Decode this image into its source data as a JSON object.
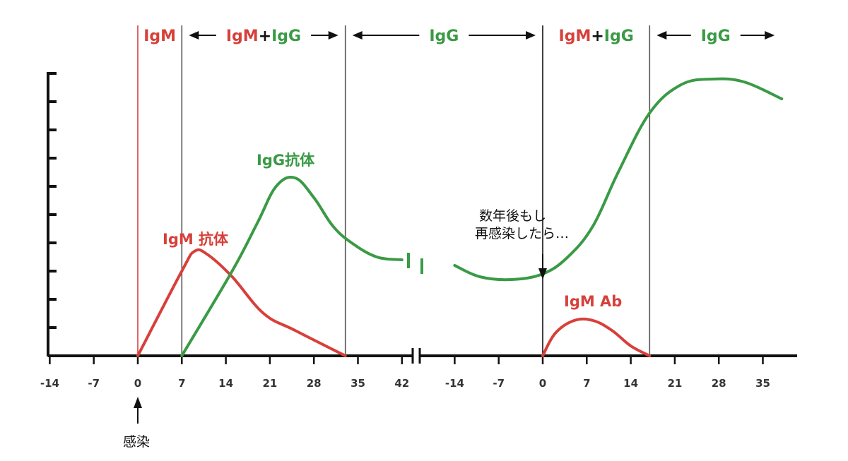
{
  "chart_data": {
    "type": "line",
    "title": "",
    "xlabel": "",
    "ylabel": "",
    "colors": {
      "igm": "#d7403a",
      "igg": "#3a9a45",
      "axis": "#111111",
      "divider": "#555555"
    },
    "panels": [
      {
        "name": "primary",
        "ticks": [
          "-14",
          "-7",
          "0",
          "7",
          "14",
          "21",
          "28",
          "35",
          "42"
        ],
        "xlim": [
          -14,
          44
        ]
      },
      {
        "name": "secondary",
        "ticks": [
          "-14",
          "-7",
          "0",
          "7",
          "14",
          "21",
          "28",
          "35"
        ],
        "xlim": [
          -14,
          38
        ]
      }
    ],
    "phases": [
      {
        "parts": [
          {
            "text": "IgM",
            "color": "igm"
          }
        ],
        "from": 0,
        "to": 7,
        "panel": 0,
        "arrows": false
      },
      {
        "parts": [
          {
            "text": "IgM",
            "color": "igm"
          },
          {
            "text": "+",
            "color": "axis"
          },
          {
            "text": "IgG",
            "color": "igg"
          }
        ],
        "from": 7,
        "to": 33,
        "panel": 0,
        "arrows": true
      },
      {
        "parts": [
          {
            "text": "IgG",
            "color": "igg"
          }
        ],
        "from": 33,
        "to": 0,
        "panel": "span",
        "arrows": true
      },
      {
        "parts": [
          {
            "text": "IgM",
            "color": "igm"
          },
          {
            "text": "+",
            "color": "axis"
          },
          {
            "text": "IgG",
            "color": "igg"
          }
        ],
        "from": 0,
        "to": 17,
        "panel": 1,
        "arrows": false
      },
      {
        "parts": [
          {
            "text": "IgG",
            "color": "igg"
          }
        ],
        "from": 17,
        "to": 38,
        "panel": 1,
        "arrows": true
      }
    ],
    "dividers": [
      {
        "panel": 0,
        "x": 0,
        "color": "igm"
      },
      {
        "panel": 0,
        "x": 7,
        "color": "divider"
      },
      {
        "panel": 0,
        "x": 33,
        "color": "divider"
      },
      {
        "panel": 1,
        "x": 0,
        "color": "axis"
      },
      {
        "panel": 1,
        "x": 17,
        "color": "divider"
      }
    ],
    "series": [
      {
        "name": "IgM 抗体",
        "color": "igm",
        "panel": 0,
        "points": [
          [
            0,
            0
          ],
          [
            7,
            3
          ],
          [
            9,
            3.7
          ],
          [
            11,
            3.6
          ],
          [
            15,
            2.8
          ],
          [
            20,
            1.5
          ],
          [
            25,
            0.9
          ],
          [
            33,
            0
          ]
        ]
      },
      {
        "name": "IgG抗体",
        "color": "igg",
        "panel": 0,
        "points": [
          [
            7,
            0
          ],
          [
            15,
            3
          ],
          [
            19,
            4.7
          ],
          [
            22,
            6
          ],
          [
            25,
            6.3
          ],
          [
            28,
            5.6
          ],
          [
            31,
            4.6
          ],
          [
            34,
            4.0
          ],
          [
            38,
            3.5
          ],
          [
            42,
            3.4
          ]
        ]
      },
      {
        "name": "IgG",
        "color": "igg",
        "panel": 1,
        "points": [
          [
            -14,
            3.2
          ],
          [
            -10,
            2.8
          ],
          [
            -5,
            2.7
          ],
          [
            0,
            2.9
          ],
          [
            4,
            3.5
          ],
          [
            8,
            4.6
          ],
          [
            12,
            6.5
          ],
          [
            17,
            8.6
          ],
          [
            22,
            9.6
          ],
          [
            27,
            9.8
          ],
          [
            32,
            9.7
          ],
          [
            38,
            9.1
          ]
        ]
      },
      {
        "name": "IgM Ab",
        "color": "igm",
        "panel": 1,
        "points": [
          [
            0,
            0
          ],
          [
            2,
            0.8
          ],
          [
            5,
            1.25
          ],
          [
            8,
            1.25
          ],
          [
            11,
            0.9
          ],
          [
            14,
            0.35
          ],
          [
            17,
            0
          ]
        ]
      }
    ],
    "labels": {
      "igg_primary": "IgG抗体",
      "igm_primary": "IgM 抗体",
      "igm_secondary": "IgM Ab",
      "reinfection_line1": "数年後もし",
      "reinfection_line2": "再感染したら…",
      "infection": "感染"
    },
    "ylim": [
      0,
      10
    ],
    "y_tick_count": 10,
    "axis_break": true
  }
}
